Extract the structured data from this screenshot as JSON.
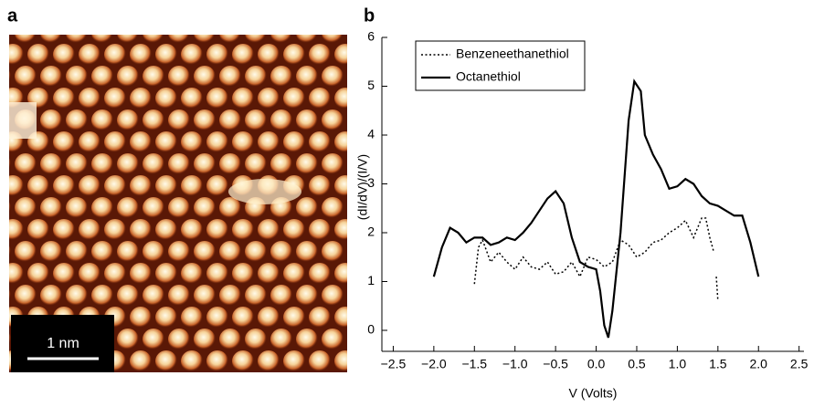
{
  "panel_labels": {
    "a": "a",
    "b": "b"
  },
  "image": {
    "scale_bar": "1 nm"
  },
  "chart_data": {
    "type": "line",
    "xlabel": "V (Volts)",
    "ylabel": "(dI/dV)/(I/V)",
    "xlim": [
      -2.64,
      2.56
    ],
    "ylim": [
      -0.43,
      6
    ],
    "xticks": [
      {
        "value": -2.5,
        "label": "−2.5"
      },
      {
        "value": -2,
        "label": "−2.0"
      },
      {
        "value": -1.5,
        "label": "−1.5"
      },
      {
        "value": -1,
        "label": "−1.0"
      },
      {
        "value": -0.5,
        "label": "−0.5"
      },
      {
        "value": 0,
        "label": "0.0"
      },
      0.5,
      {
        "value": 1,
        "label": "1.0"
      },
      1.5,
      {
        "value": 2,
        "label": "2.0"
      },
      2.5
    ],
    "yticks": [
      0,
      1,
      2,
      3,
      4,
      5,
      6
    ],
    "legend": "upper left",
    "series": [
      {
        "name": "Benzeneethanethiol",
        "color": "#000000",
        "style": "dotted",
        "x": [
          -1.5,
          -1.45,
          -1.4,
          -1.3,
          -1.2,
          -1.1,
          -1.0,
          -0.9,
          -0.8,
          -0.7,
          -0.6,
          -0.5,
          -0.4,
          -0.3,
          -0.2,
          -0.1,
          0.0,
          0.1,
          0.2,
          0.3,
          0.4,
          0.5,
          0.6,
          0.7,
          0.8,
          0.9,
          1.0,
          1.1,
          1.2,
          1.3,
          1.35,
          1.4,
          1.45,
          null,
          1.48,
          1.5
        ],
        "values": [
          0.95,
          1.7,
          1.85,
          1.4,
          1.6,
          1.4,
          1.25,
          1.5,
          1.3,
          1.25,
          1.4,
          1.15,
          1.2,
          1.4,
          1.1,
          1.5,
          1.45,
          1.3,
          1.4,
          1.85,
          1.75,
          1.5,
          1.6,
          1.8,
          1.85,
          2.0,
          2.1,
          2.25,
          1.9,
          2.3,
          2.3,
          1.9,
          1.6,
          null,
          1.1,
          0.6
        ]
      },
      {
        "name": "Octanethiol",
        "color": "#000000",
        "style": "solid",
        "x": [
          -2.0,
          -1.9,
          -1.8,
          -1.7,
          -1.6,
          -1.5,
          -1.4,
          -1.3,
          -1.2,
          -1.1,
          -1.0,
          -0.9,
          -0.8,
          -0.7,
          -0.6,
          -0.5,
          -0.4,
          -0.3,
          -0.2,
          -0.1,
          0.0,
          0.05,
          0.1,
          0.15,
          0.2,
          0.3,
          0.4,
          0.47,
          0.55,
          0.6,
          0.7,
          0.8,
          0.9,
          1.0,
          1.1,
          1.2,
          1.3,
          1.4,
          1.5,
          1.6,
          1.7,
          1.8,
          1.9,
          2.0
        ],
        "values": [
          1.1,
          1.7,
          2.1,
          2.0,
          1.8,
          1.9,
          1.9,
          1.75,
          1.8,
          1.9,
          1.85,
          2.0,
          2.2,
          2.45,
          2.7,
          2.85,
          2.6,
          1.9,
          1.4,
          1.3,
          1.25,
          0.8,
          0.1,
          -0.15,
          0.4,
          2.0,
          4.3,
          5.1,
          4.9,
          4.0,
          3.6,
          3.3,
          2.9,
          2.95,
          3.1,
          3.0,
          2.75,
          2.6,
          2.55,
          2.45,
          2.35,
          2.35,
          1.8,
          1.1
        ]
      }
    ]
  }
}
